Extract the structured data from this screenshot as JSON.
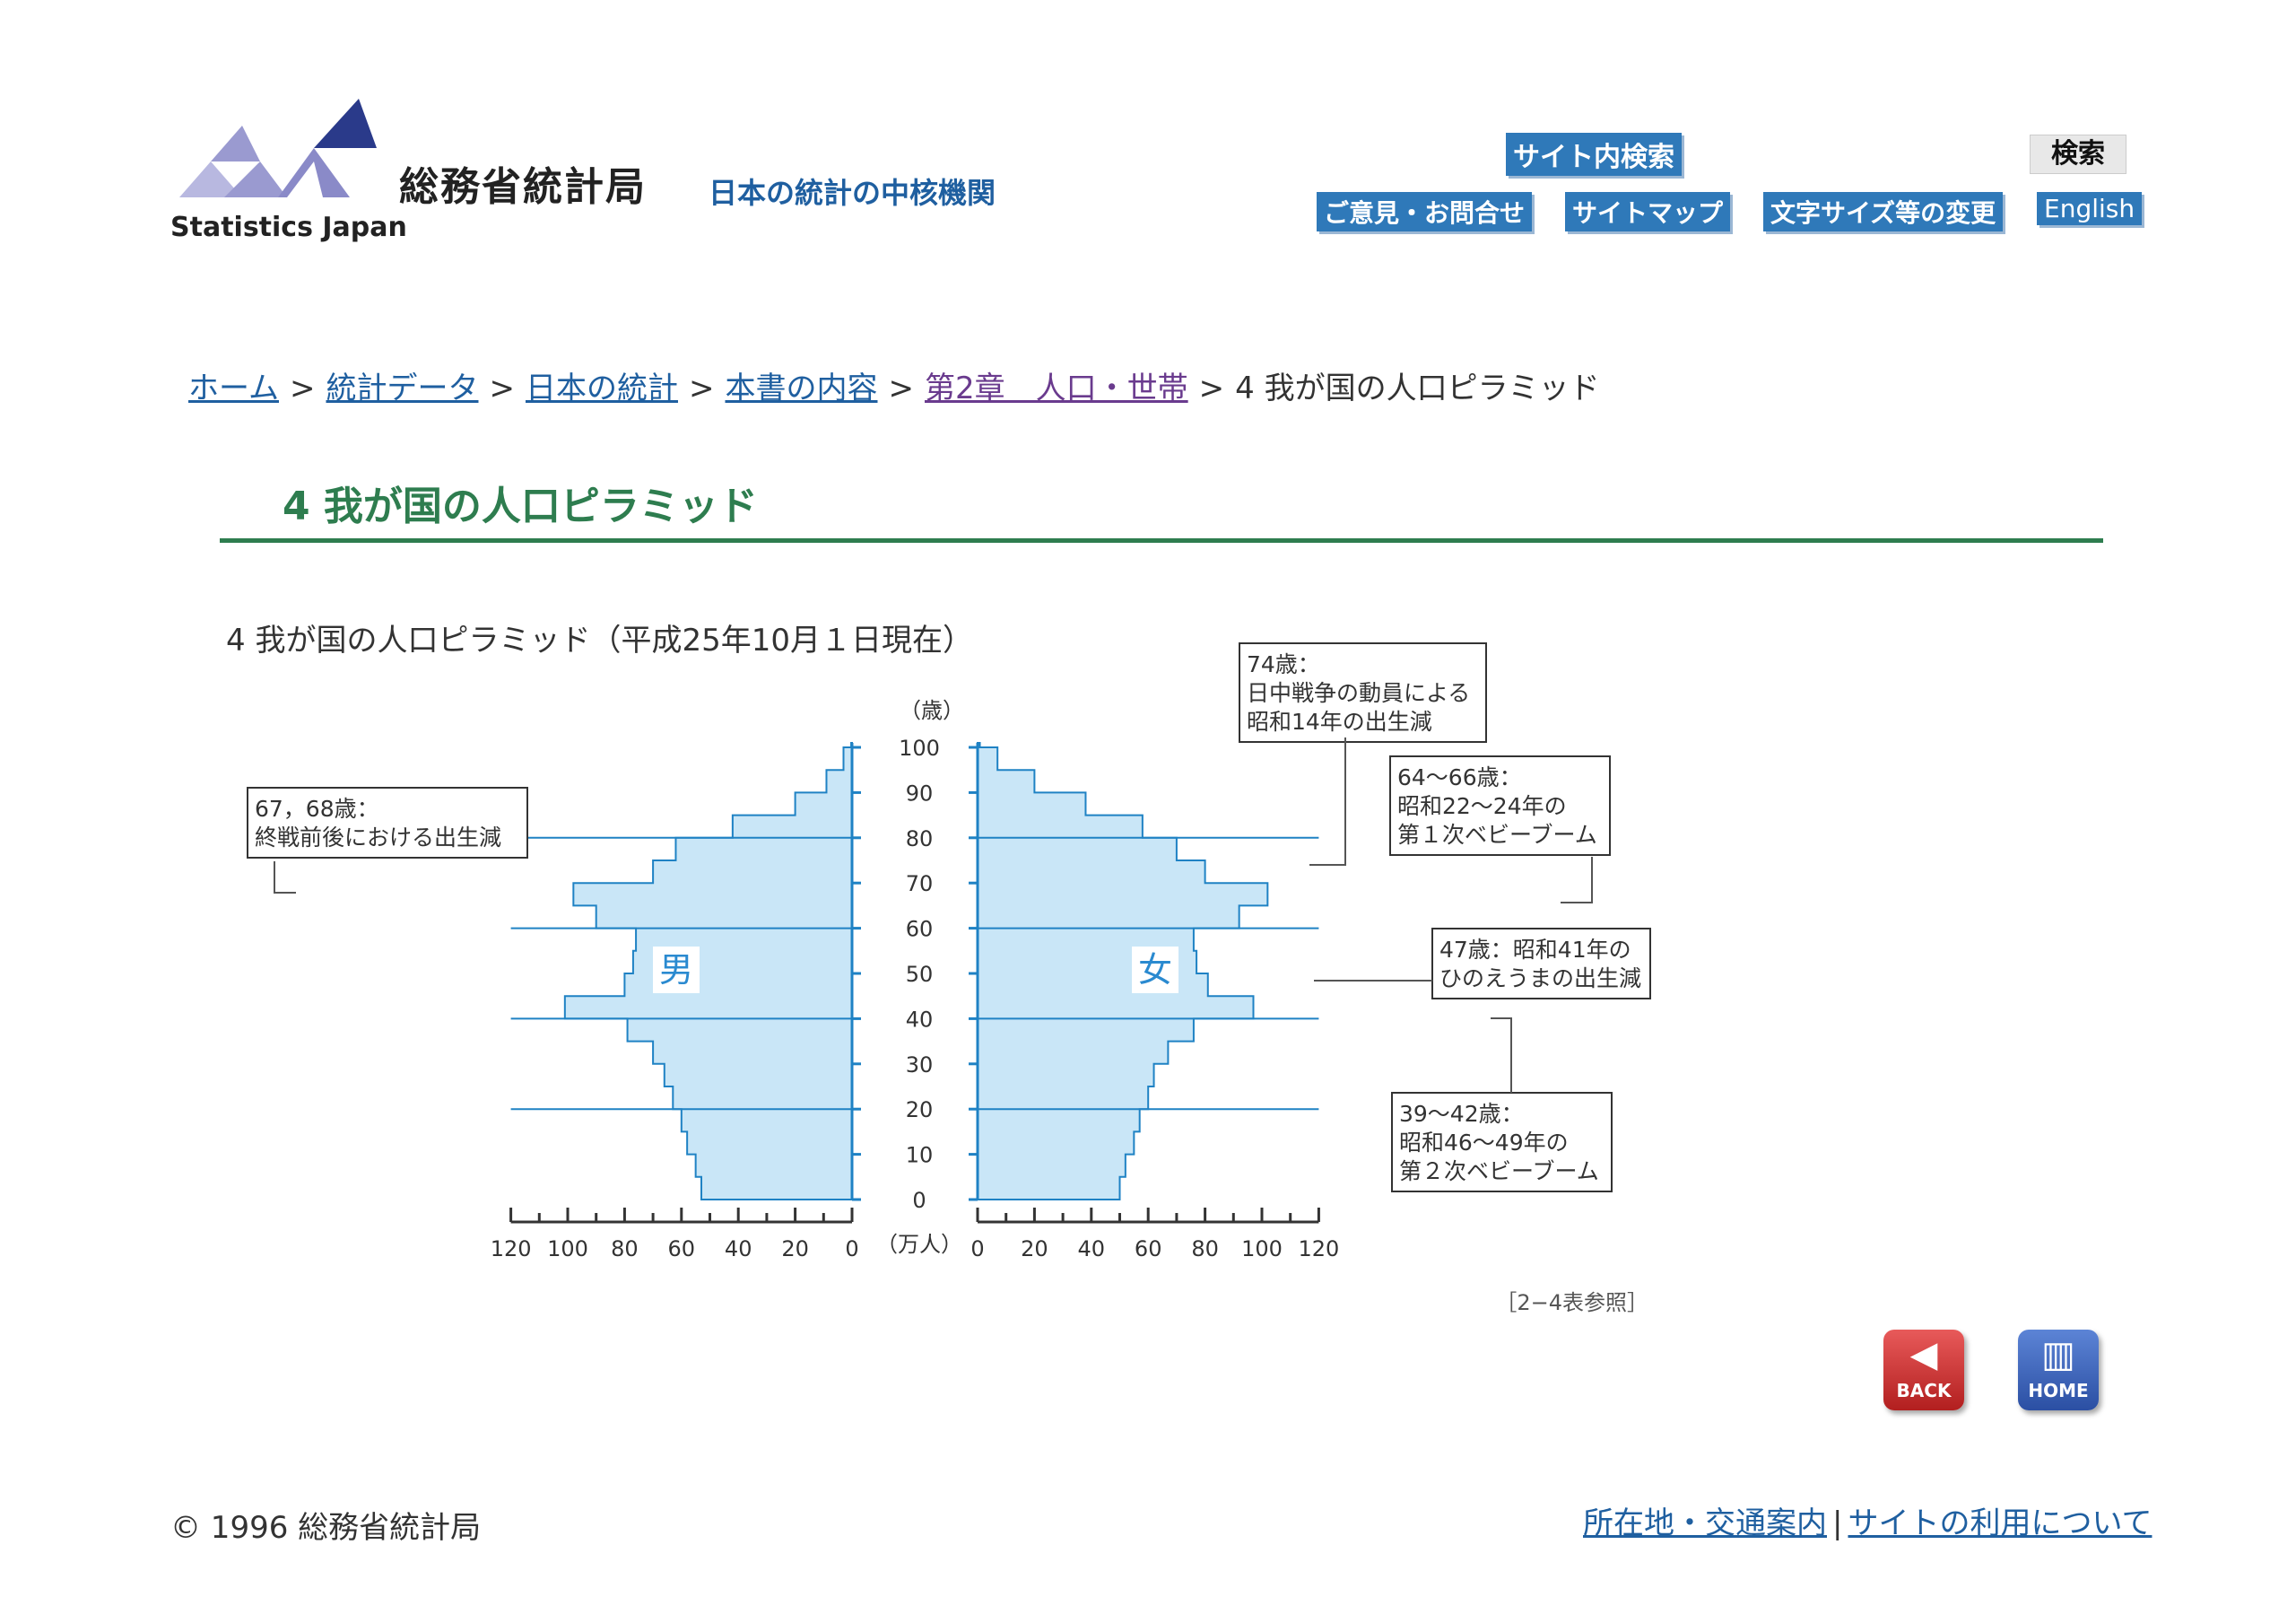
{
  "header": {
    "logo_text": "総務省統計局",
    "logo_en": "Statistics Japan",
    "tagline": "日本の統計の中核機関",
    "search_label": "サイト内検索",
    "search_button": "検索",
    "nav": [
      "ご意見・お問合せ",
      "サイトマップ",
      "文字サイズ等の変更",
      "English"
    ]
  },
  "breadcrumb": {
    "items": [
      "ホーム",
      "統計データ",
      "日本の統計",
      "本書の内容",
      "第2章　人口・世帯"
    ],
    "separator": ">",
    "current": "4 我が国の人口ピラミッド"
  },
  "page_title": "4 我が国の人口ピラミッド",
  "chart_data": {
    "type": "population-pyramid",
    "title": "4  我が国の人口ピラミッド（平成25年10月１日現在）",
    "y_unit_label": "（歳）",
    "x_unit_label": "（万人）",
    "left_label": "男",
    "right_label": "女",
    "ages": [
      0,
      5,
      10,
      15,
      20,
      25,
      30,
      35,
      40,
      45,
      50,
      55,
      60,
      65,
      70,
      75,
      80,
      85,
      90,
      95,
      100
    ],
    "male": [
      53,
      55,
      58,
      60,
      63,
      66,
      70,
      79,
      101,
      80,
      77,
      76,
      90,
      98,
      70,
      62,
      42,
      20,
      9,
      3,
      0.3
    ],
    "female": [
      50,
      52,
      55,
      57,
      60,
      62,
      67,
      76,
      97,
      81,
      77,
      76,
      92,
      102,
      80,
      70,
      58,
      38,
      20,
      7,
      0.8
    ],
    "y_ticks": [
      0,
      10,
      20,
      30,
      40,
      50,
      60,
      70,
      80,
      90,
      100
    ],
    "x_ticks_left": [
      120,
      100,
      80,
      60,
      40,
      20,
      0
    ],
    "x_ticks_right": [
      0,
      20,
      40,
      60,
      80,
      100,
      120
    ],
    "xlim": [
      0,
      120
    ],
    "ylim": [
      0,
      100
    ],
    "annotations": {
      "a74": [
        "74歳：",
        "日中戦争の動員による",
        "昭和14年の出生減"
      ],
      "a6466": [
        "64〜66歳：",
        "昭和22〜24年の",
        "第１次ベビーブーム"
      ],
      "a6768": [
        "67，68歳：",
        "終戦前後における出生減"
      ],
      "a47": [
        "47歳：昭和41年の",
        "ひのえうまの出生減"
      ],
      "a3942": [
        "39〜42歳：",
        "昭和46〜49年の",
        "第２次ベビーブーム"
      ]
    },
    "reference": "［2−4表参照］",
    "fill_color": "#c9e6f7",
    "line_color": "#1f82c4"
  },
  "nav_buttons": {
    "back": "BACK",
    "home": "HOME"
  },
  "footer": {
    "copyright": "© 1996 総務省統計局",
    "links": [
      "所在地・交通案内",
      "サイトの利用について"
    ]
  }
}
